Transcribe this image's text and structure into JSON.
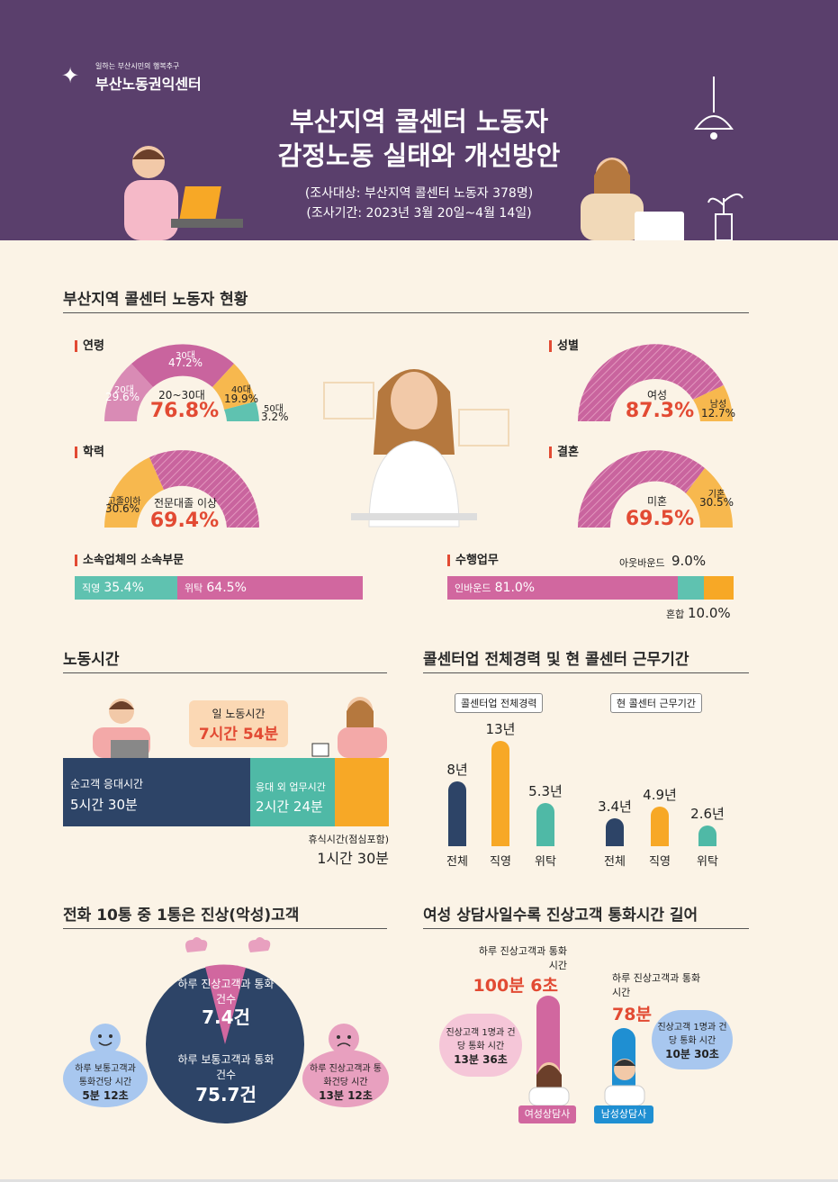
{
  "header": {
    "logo_sub": "일하는 부산시민의 행복추구",
    "logo_name": "부산노동권익센터",
    "title_line1": "부산지역 콜센터 노동자",
    "title_line2": "감정노동 실태와 개선방안",
    "survey_target": "(조사대상: 부산지역 콜센터 노동자 378명)",
    "survey_period": "(조사기간: 2023년 3월 20일~4월 14일)"
  },
  "status": {
    "title": "부산지역 콜센터 노동자 현황",
    "age": {
      "label": "연령",
      "center_label": "20~30대",
      "center_value": "76.8%",
      "segments": [
        {
          "name": "20대",
          "value": "29.6%",
          "color": "#d98bb5"
        },
        {
          "name": "30대",
          "value": "47.2%",
          "color": "#c9649e"
        },
        {
          "name": "40대",
          "value": "19.9%",
          "color": "#f7b84e"
        },
        {
          "name": "50대",
          "value": "3.2%",
          "color": "#5fc2b0"
        }
      ]
    },
    "gender": {
      "label": "성별",
      "center_label": "여성",
      "center_value": "87.3%",
      "other_label": "남성",
      "other_value": "12.7%"
    },
    "education": {
      "label": "학력",
      "center_label": "전문대졸 이상",
      "center_value": "69.4%",
      "other_label": "고졸이하",
      "other_value": "30.6%"
    },
    "marriage": {
      "label": "결혼",
      "center_label": "미혼",
      "center_value": "69.5%",
      "other_label": "기혼",
      "other_value": "30.5%"
    },
    "affiliation": {
      "label": "소속업체의 소속부문",
      "direct_label": "직영",
      "direct_value": "35.4%",
      "outsourced_label": "위탁",
      "outsourced_value": "64.5%"
    },
    "tasks": {
      "label": "수행업무",
      "inbound_label": "인바운드",
      "inbound_value": "81.0%",
      "outbound_label": "아웃바운드",
      "outbound_value": "9.0%",
      "mixed_label": "혼합",
      "mixed_value": "10.0%"
    }
  },
  "work_hours": {
    "title": "노동시간",
    "daily_label": "일 노동시간",
    "daily_value": "7시간 54분",
    "customer_label": "순고객 응대시간",
    "customer_value": "5시간 30분",
    "other_label": "응대 외 업무시간",
    "other_value": "2시간 24분",
    "rest_label": "휴식시간(점심포함)",
    "rest_value": "1시간 30분"
  },
  "career": {
    "title": "콜센터업 전체경력 및 현 콜센터 근무기간",
    "total_panel": "콜센터업 전체경력",
    "current_panel": "현 콜센터 근무기간",
    "total": [
      {
        "cat": "전체",
        "val": "8년",
        "num": 8
      },
      {
        "cat": "직영",
        "val": "13년",
        "num": 13
      },
      {
        "cat": "위탁",
        "val": "5.3년",
        "num": 5.3
      }
    ],
    "current": [
      {
        "cat": "전체",
        "val": "3.4년",
        "num": 3.4
      },
      {
        "cat": "직영",
        "val": "4.9년",
        "num": 4.9
      },
      {
        "cat": "위탁",
        "val": "2.6년",
        "num": 2.6
      }
    ]
  },
  "abusive": {
    "title": "전화 10통 중 1통은 진상(악성)고객",
    "abusive_calls_label": "하루 진상고객과 통화건수",
    "abusive_calls_value": "7.4건",
    "normal_calls_label": "하루 보통고객과 통화건수",
    "normal_calls_value": "75.7건",
    "normal_time_label": "하루 보통고객과 통화건당 시간",
    "normal_time_value": "5분 12초",
    "abusive_time_label": "하루 진상고객과 통화건당 시간",
    "abusive_time_value": "13분 12초"
  },
  "gender_time": {
    "title": "여성 상담사일수록 진상고객 통화시간 길어",
    "female_label": "하루 진상고객과 통화시간",
    "female_value": "100분 6초",
    "female_per_label": "진상고객 1명과 건당 통화 시간",
    "female_per_value": "13분 36초",
    "female_tag": "여성상담사",
    "male_label": "하루 진상고객과 통화시간",
    "male_value": "78분",
    "male_per_label": "진상고객 1명과 건당 통화 시간",
    "male_per_value": "10분 30초",
    "male_tag": "남성상담사"
  }
}
